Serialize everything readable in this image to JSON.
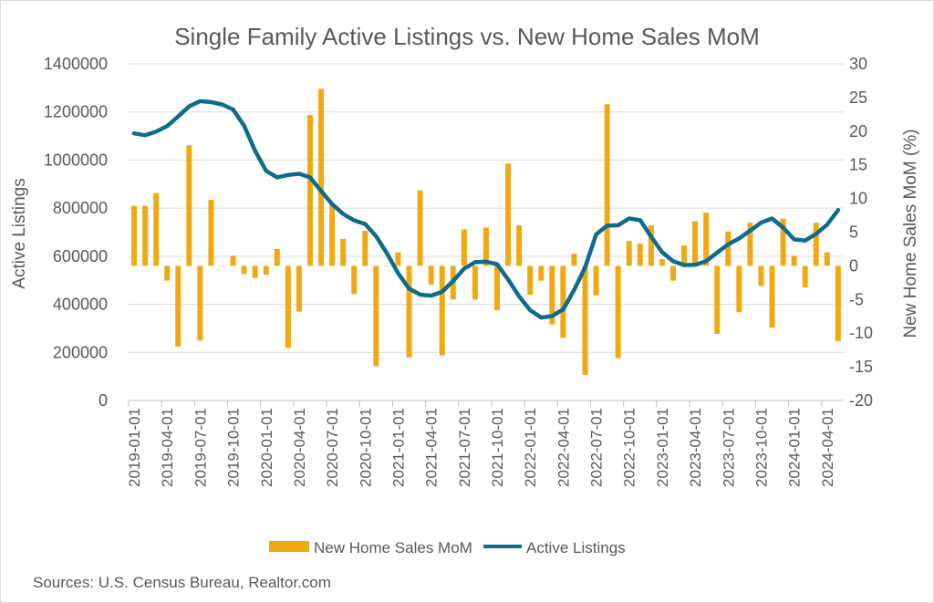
{
  "chart_data": {
    "type": "bar+line",
    "title": "Single Family Active Listings vs. New Home Sales MoM",
    "ylabel_left": "Active Listings",
    "ylabel_right": "New Home Sales MoM (%)",
    "ylim_left": [
      0,
      1400000
    ],
    "ylim_right": [
      -20,
      30
    ],
    "yticks_left": [
      "0",
      "200000",
      "400000",
      "600000",
      "800000",
      "1000000",
      "1200000",
      "1400000"
    ],
    "yticks_right": [
      "-20",
      "-15",
      "-10",
      "-5",
      "0",
      "5",
      "10",
      "15",
      "20",
      "25",
      "30"
    ],
    "grid": true,
    "legend_position": "bottom",
    "xtick_labels": [
      "2019-01-01",
      "2019-04-01",
      "2019-07-01",
      "2019-10-01",
      "2020-01-01",
      "2020-04-01",
      "2020-07-01",
      "2020-10-01",
      "2021-01-01",
      "2021-04-01",
      "2021-07-01",
      "2021-10-01",
      "2022-01-01",
      "2022-04-01",
      "2022-07-01",
      "2022-10-01",
      "2023-01-01",
      "2023-04-01",
      "2023-07-01",
      "2023-10-01",
      "2024-01-01",
      "2024-04-01"
    ],
    "x_start": "2019-01-01",
    "x_end": "2024-05-01",
    "series": [
      {
        "name": "New Home Sales MoM",
        "type": "bar",
        "axis": "right",
        "color": "#F0A912",
        "values": [
          8.9,
          8.9,
          10.8,
          -2.2,
          -12.0,
          17.9,
          -11.1,
          9.8,
          0,
          1.5,
          -1.2,
          -1.8,
          -1.3,
          2.5,
          -12.2,
          -6.8,
          22.4,
          26.3,
          9.2,
          4.0,
          -4.2,
          5.2,
          -14.9,
          0,
          2.0,
          -13.6,
          11.2,
          -2.8,
          -13.3,
          -5.0,
          5.4,
          -5.0,
          5.7,
          -6.6,
          15.2,
          6.0,
          -4.3,
          -2.2,
          -8.7,
          -10.7,
          1.8,
          -16.2,
          -4.4,
          24.0,
          -13.7,
          3.7,
          3.3,
          6.0,
          1.0,
          -2.2,
          3.0,
          6.6,
          7.9,
          -10.1,
          5.1,
          -6.9,
          6.4,
          -3.0,
          -9.2,
          7.0,
          1.5,
          -3.2,
          6.4,
          2.0,
          -11.2
        ]
      },
      {
        "name": "Active Listings",
        "type": "line",
        "axis": "left",
        "color": "#0E6B8C",
        "values": [
          1111000,
          1103000,
          1118000,
          1141000,
          1181000,
          1223000,
          1245000,
          1241000,
          1231000,
          1210000,
          1143000,
          1038000,
          955000,
          928000,
          938000,
          943000,
          928000,
          871000,
          817000,
          776000,
          749000,
          734000,
          683000,
          611000,
          529000,
          465000,
          440000,
          436000,
          452000,
          497000,
          548000,
          575000,
          577000,
          567000,
          503000,
          433000,
          376000,
          345000,
          351000,
          379000,
          459000,
          554000,
          691000,
          727000,
          729000,
          757000,
          750000,
          681000,
          617000,
          579000,
          563000,
          564000,
          579000,
          615000,
          649000,
          674000,
          706000,
          740000,
          757000,
          719000,
          670000,
          665000,
          693000,
          731000,
          792000
        ]
      }
    ]
  },
  "source": "Sources: U.S. Census Bureau, Realtor.com"
}
